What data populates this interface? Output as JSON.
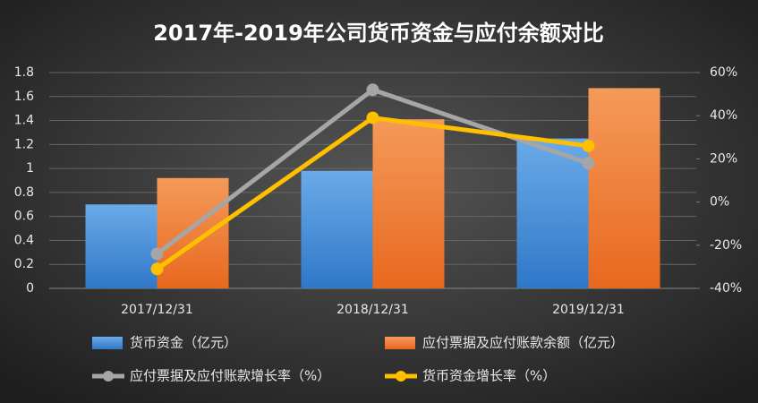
{
  "chart_data": {
    "type": "bar-line",
    "title": "2017年-2019年公司货币资金与应付余额对比",
    "categories": [
      "2017/12/31",
      "2018/12/31",
      "2019/12/31"
    ],
    "ylim": [
      0,
      1.8
    ],
    "yticks": [
      0,
      0.2,
      0.4,
      0.6,
      0.8,
      1,
      1.2,
      1.4,
      1.6,
      1.8
    ],
    "y2lim": [
      -40,
      60
    ],
    "y2ticks": [
      {
        "value": -40,
        "label": "-40%"
      },
      {
        "value": -20,
        "label": "-20%"
      },
      {
        "value": 0,
        "label": "0%"
      },
      {
        "value": 20,
        "label": "20%"
      },
      {
        "value": 40,
        "label": "40%"
      },
      {
        "value": 60,
        "label": "60%"
      }
    ],
    "grid": true,
    "series": [
      {
        "name": "货币资金（亿元）",
        "type": "bar",
        "color": "#4a90d9",
        "values": [
          0.7,
          0.98,
          1.25
        ]
      },
      {
        "name": "应付票据及应付账款余额（亿元）",
        "type": "bar",
        "color": "#f07c30",
        "values": [
          0.92,
          1.41,
          1.67
        ]
      },
      {
        "name": "应付票据及应付账款增长率（%）",
        "type": "line",
        "axis": "y2",
        "color": "#a6a6a6",
        "values": [
          -24,
          52,
          18
        ]
      },
      {
        "name": "货币资金增长率（%）",
        "type": "line",
        "axis": "y2",
        "color": "#ffc000",
        "values": [
          -31,
          39,
          26
        ]
      }
    ]
  }
}
